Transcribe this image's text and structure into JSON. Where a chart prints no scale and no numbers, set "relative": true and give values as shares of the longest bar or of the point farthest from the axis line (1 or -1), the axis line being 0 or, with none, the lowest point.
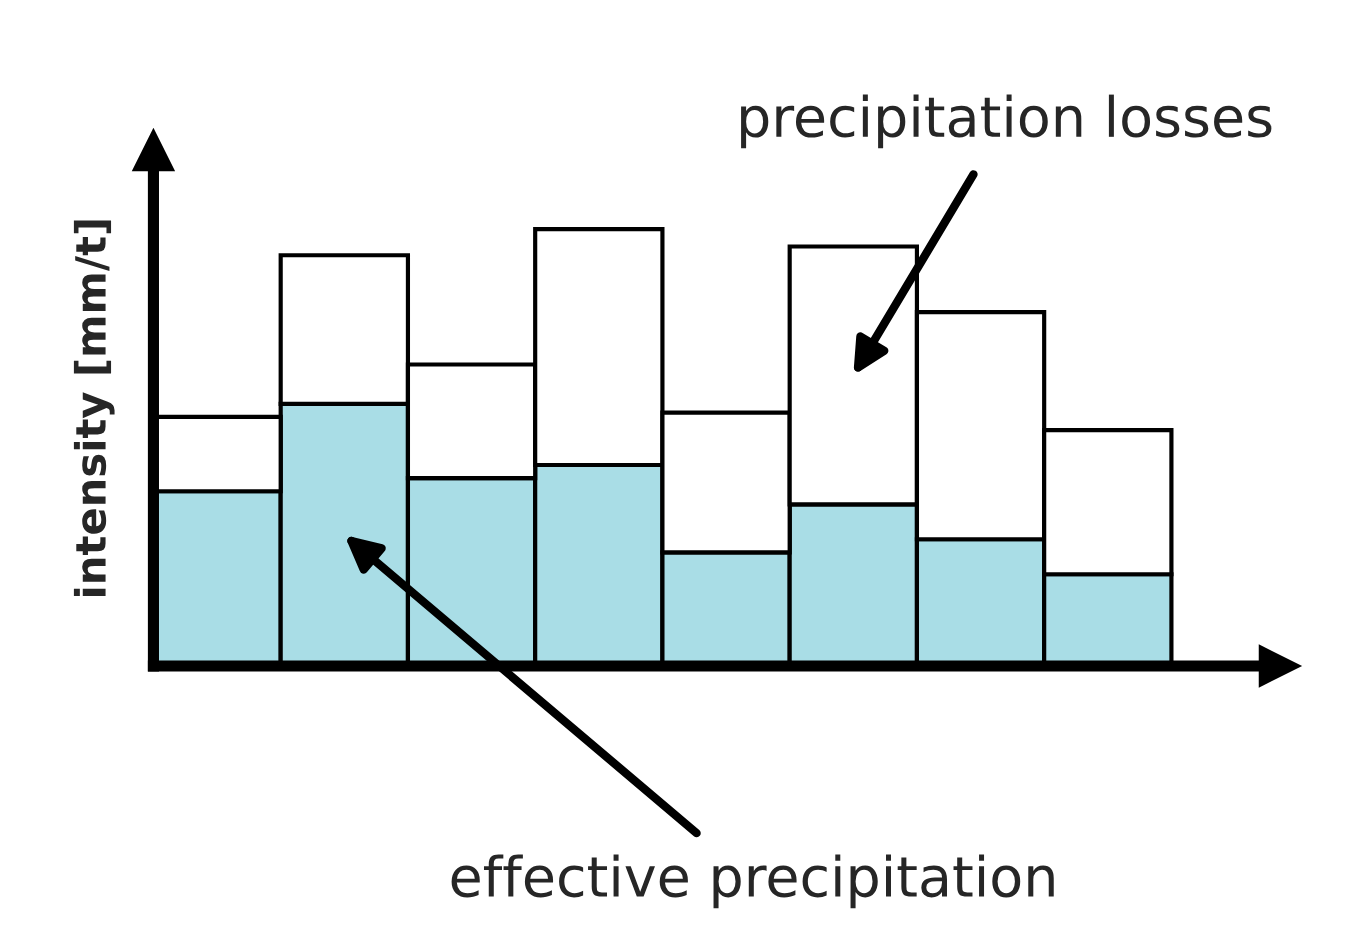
{
  "chart_data": {
    "type": "bar",
    "stacked": true,
    "relative": true,
    "ylabel": "intensity [mm/t]",
    "categories": [
      null,
      null,
      null,
      null,
      null,
      null,
      null,
      null
    ],
    "series": [
      {
        "color": "#a9dde6",
        "values": [
          0.4,
          0.6,
          0.43,
          0.46,
          0.26,
          0.37,
          0.29,
          0.21
        ]
      },
      {
        "color": "#ffffff",
        "values": [
          0.17,
          0.34,
          0.26,
          0.54,
          0.32,
          0.59,
          0.52,
          0.33
        ]
      }
    ],
    "annotations": [
      "precipitation losses",
      "effective precipitation"
    ],
    "grid": false,
    "legend": false
  }
}
